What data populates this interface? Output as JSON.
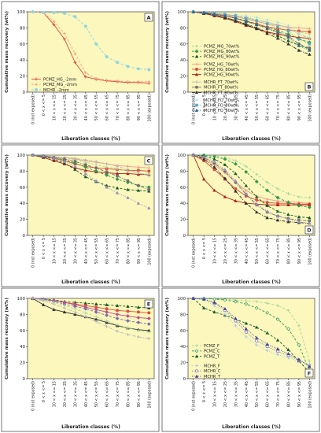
{
  "figure": {
    "categories": [
      "0 (not exposed)",
      "0 < x <= 5",
      "10 < x <= 15",
      "20 < x <= 25",
      "30 < x <= 35",
      "40 < x <= 45",
      "50 < x <= 55",
      "60 < x <= 65",
      "70 < x <= 75",
      "80 < x <= 85",
      "90 < x <= 95",
      "100 (exposed)"
    ],
    "xlabel": "Liberation classes (%)",
    "ylabel": "Cumulative mass recovery (wt%)",
    "yticks": [
      "0",
      "20",
      "40",
      "60",
      "80",
      "100"
    ],
    "plot_bg": "#fbf7bd"
  },
  "chart_data": [
    {
      "panel": "A",
      "type": "line",
      "x": [
        "0 (not exposed)",
        "0 < x <= 5",
        "10 < x <= 15",
        "20 < x <= 25",
        "30 < x <= 35",
        "40 < x <= 45",
        "50 < x <= 55",
        "60 < x <= 65",
        "70 < x <= 75",
        "80 < x <= 85",
        "90 < x <= 95",
        "100 (exposed)"
      ],
      "ylim": [
        0,
        100
      ],
      "legend_position": "bottom-left",
      "series": [
        {
          "name": "PCMZ_HG_-2mm",
          "color": "#e4463c",
          "marker": "plus",
          "dash": "solid",
          "values": [
            100,
            99,
            84,
            66,
            37,
            19,
            16,
            14,
            13,
            12,
            12,
            11
          ]
        },
        {
          "name": "PCMZ_MG_-2mm",
          "color": "#f2a58c",
          "marker": "plus",
          "dash": "dashed",
          "values": [
            100,
            99,
            88,
            73,
            48,
            24,
            17,
            15,
            14,
            13,
            13,
            13
          ]
        },
        {
          "name": "MCHR_-2mm",
          "color": "#8fd3e2",
          "marker": "circle",
          "dash": "dashed",
          "values": [
            100,
            99,
            99,
            98,
            94,
            82,
            60,
            44,
            37,
            32,
            29,
            28
          ]
        }
      ]
    },
    {
      "panel": "B",
      "type": "line",
      "x": [
        "0 (not exposed)",
        "0 < x <= 5",
        "10 < x <= 15",
        "20 < x <= 25",
        "30 < x <= 35",
        "40 < x <= 45",
        "50 < x <= 55",
        "60 < x <= 65",
        "70 < x <= 75",
        "80 < x <= 85",
        "90 < x <= 95",
        "100 (exposed)"
      ],
      "ylim": [
        0,
        100
      ],
      "legend_position": "bottom-left",
      "series": [
        {
          "name": "PCMZ_MG_70wt%",
          "color": "#a7d7a0",
          "marker": "plus",
          "dash": "dashed",
          "values": [
            100,
            99,
            98,
            97,
            95,
            93,
            90,
            87,
            84,
            80,
            75,
            72
          ]
        },
        {
          "name": "PCMZ_MG_80wt%",
          "color": "#2f9a4e",
          "marker": "diamond",
          "dash": "dashed",
          "values": [
            100,
            99,
            97,
            95,
            92,
            89,
            85,
            81,
            77,
            72,
            66,
            62
          ]
        },
        {
          "name": "PCMZ_MG_90wt%",
          "color": "#145a2a",
          "marker": "triangle",
          "dash": "dashed",
          "values": [
            100,
            98,
            96,
            93,
            89,
            85,
            80,
            75,
            70,
            64,
            58,
            54
          ]
        },
        {
          "name": "PCMZ_HG_70wt%",
          "color": "#f29a8c",
          "marker": "plus",
          "dash": "solid",
          "values": [
            100,
            99,
            98,
            96,
            94,
            91,
            88,
            85,
            83,
            81,
            80,
            79
          ]
        },
        {
          "name": "PCMZ_HG_80wt%",
          "color": "#e24b3b",
          "marker": "circle",
          "dash": "solid",
          "values": [
            100,
            99,
            97,
            95,
            92,
            88,
            85,
            81,
            79,
            77,
            76,
            75
          ]
        },
        {
          "name": "PCMZ_HG_90wt%",
          "color": "#b51f1a",
          "marker": "triangle",
          "dash": "solid",
          "values": [
            100,
            98,
            95,
            92,
            88,
            83,
            79,
            75,
            72,
            70,
            68,
            67
          ]
        },
        {
          "name": "MCHR_FT_70wt%",
          "color": "#b8b8b8",
          "marker": "plus",
          "dash": "dashdot",
          "values": [
            100,
            99,
            98,
            97,
            95,
            93,
            90,
            87,
            84,
            80,
            72,
            67
          ]
        },
        {
          "name": "MCHR_FT_80wt%",
          "color": "#6f6f6f",
          "marker": "circle",
          "dash": "dashdot",
          "values": [
            100,
            99,
            97,
            95,
            92,
            88,
            84,
            80,
            75,
            70,
            60,
            55
          ]
        },
        {
          "name": "MCHR_FT_90wt%",
          "color": "#2f2f2f",
          "marker": "triangle",
          "dash": "dashdot",
          "values": [
            100,
            98,
            96,
            93,
            89,
            84,
            79,
            73,
            67,
            60,
            52,
            47
          ]
        },
        {
          "name": "MCHR_FO_70wt%",
          "color": "#a9dbe8",
          "marker": "plus",
          "dash": "dotted",
          "values": [
            100,
            99,
            99,
            98,
            97,
            95,
            93,
            90,
            87,
            83,
            74,
            68
          ]
        },
        {
          "name": "MCHR_FO_80wt%",
          "color": "#5aa8c6",
          "marker": "circle",
          "dash": "dotted",
          "values": [
            100,
            99,
            98,
            97,
            95,
            92,
            89,
            85,
            81,
            76,
            66,
            60
          ]
        },
        {
          "name": "MCHR_FO_90wt%",
          "color": "#2a6b8f",
          "marker": "triangle",
          "dash": "dotted",
          "values": [
            100,
            99,
            97,
            95,
            92,
            88,
            84,
            79,
            74,
            68,
            58,
            52
          ]
        }
      ]
    },
    {
      "panel": "C",
      "type": "line",
      "x": [
        "0 (not exposed)",
        "0 < x <= 5",
        "10 < x <= 15",
        "20 < x <= 25",
        "30 < x <= 35",
        "40 < x <= 45",
        "50 < x <= 55",
        "60 < x <= 65",
        "70 < x <= 75",
        "80 < x <= 85",
        "90 < x <= 95",
        "100 (exposed)"
      ],
      "ylim": [
        0,
        100
      ],
      "series": [
        {
          "color": "#f29a8c",
          "marker": "plus",
          "dash": "solid",
          "values": [
            100,
            99,
            98,
            97,
            95,
            93,
            91,
            89,
            87,
            86,
            85,
            84
          ]
        },
        {
          "color": "#e24b3b",
          "marker": "circle",
          "dash": "solid",
          "values": [
            100,
            98,
            96,
            93,
            89,
            86,
            84,
            83,
            82,
            81,
            81,
            80
          ]
        },
        {
          "color": "#b51f1a",
          "marker": "triangle",
          "dash": "solid",
          "values": [
            100,
            97,
            93,
            89,
            84,
            81,
            79,
            78,
            77,
            77,
            76,
            76
          ]
        },
        {
          "color": "#a7d7a0",
          "marker": "plus",
          "dash": "dashed",
          "values": [
            100,
            99,
            98,
            96,
            94,
            91,
            88,
            85,
            83,
            80,
            78,
            76
          ]
        },
        {
          "color": "#2f9a4e",
          "marker": "diamond",
          "dash": "dashed",
          "values": [
            100,
            99,
            97,
            94,
            90,
            85,
            80,
            75,
            70,
            66,
            62,
            60
          ]
        },
        {
          "color": "#145a2a",
          "marker": "triangle",
          "dash": "dashed",
          "values": [
            100,
            98,
            95,
            90,
            82,
            73,
            67,
            62,
            59,
            57,
            56,
            55
          ]
        },
        {
          "color": "#b8b8b8",
          "marker": "plus",
          "dash": "dashdot",
          "values": [
            100,
            99,
            98,
            97,
            96,
            94,
            92,
            89,
            86,
            82,
            78,
            74
          ]
        },
        {
          "color": "#6f6f6f",
          "marker": "circle",
          "dash": "dashdot",
          "values": [
            100,
            99,
            97,
            95,
            92,
            88,
            84,
            79,
            74,
            68,
            62,
            57
          ]
        },
        {
          "color": "#9a8ec2",
          "marker": "triangle",
          "dash": "dotted",
          "values": [
            100,
            99,
            96,
            92,
            86,
            77,
            68,
            60,
            53,
            47,
            40,
            34
          ]
        }
      ]
    },
    {
      "panel": "D",
      "type": "line",
      "x": [
        "0 (not exposed)",
        "0 < x <= 5",
        "10 < x <= 15",
        "20 < x <= 25",
        "30 < x <= 35",
        "40 < x <= 45",
        "50 < x <= 55",
        "60 < x <= 65",
        "70 < x <= 75",
        "80 < x <= 85",
        "90 < x <= 95",
        "100 (exposed)"
      ],
      "ylim": [
        0,
        100
      ],
      "series": [
        {
          "color": "#f29a8c",
          "marker": "plus",
          "dash": "solid",
          "values": [
            100,
            96,
            88,
            78,
            66,
            56,
            49,
            45,
            43,
            42,
            41,
            40
          ]
        },
        {
          "color": "#e24b3b",
          "marker": "circle",
          "dash": "solid",
          "values": [
            100,
            93,
            82,
            70,
            58,
            49,
            44,
            41,
            40,
            40,
            39,
            39
          ]
        },
        {
          "color": "#b51f1a",
          "marker": "triangle",
          "dash": "solid",
          "values": [
            100,
            70,
            56,
            48,
            43,
            40,
            39,
            38,
            38,
            38,
            38,
            38
          ]
        },
        {
          "color": "#a7d7a0",
          "marker": "plus",
          "dash": "dashed",
          "values": [
            100,
            100,
            99,
            97,
            93,
            86,
            76,
            66,
            58,
            52,
            48,
            47
          ]
        },
        {
          "color": "#2f9a4e",
          "marker": "diamond",
          "dash": "dashed",
          "values": [
            100,
            100,
            98,
            95,
            89,
            79,
            67,
            56,
            47,
            41,
            37,
            35
          ]
        },
        {
          "color": "#145a2a",
          "marker": "triangle",
          "dash": "dashed",
          "values": [
            100,
            99,
            95,
            88,
            77,
            62,
            48,
            37,
            30,
            26,
            23,
            22
          ]
        },
        {
          "color": "#6f6f6f",
          "marker": "circle",
          "dash": "dashdot",
          "values": [
            100,
            97,
            90,
            80,
            66,
            51,
            38,
            29,
            24,
            21,
            19,
            18
          ]
        },
        {
          "color": "#2f2f2f",
          "marker": "triangle",
          "dash": "dashdot",
          "values": [
            100,
            95,
            85,
            71,
            55,
            40,
            29,
            22,
            19,
            17,
            16,
            15
          ]
        },
        {
          "color": "#9a8ec2",
          "marker": "triangle",
          "dash": "dotted",
          "values": [
            100,
            98,
            92,
            82,
            68,
            52,
            39,
            30,
            24,
            20,
            17,
            15
          ]
        }
      ]
    },
    {
      "panel": "E",
      "type": "line",
      "x": [
        "0 (not exposed)",
        "0 < x <= 5",
        "10 < x <= 15",
        "20 < x <= 25",
        "30 < x <= 35",
        "40 < x <= 45",
        "50 < x <= 55",
        "60 < x <= 65",
        "70 < x <= 75",
        "80 < x <= 85",
        "90 < x <= 95",
        "100 (exposed)"
      ],
      "ylim": [
        0,
        100
      ],
      "series": [
        {
          "color": "#145a2a",
          "marker": "triangle",
          "dash": "dashed",
          "values": [
            100,
            99,
            98,
            96,
            95,
            94,
            93,
            92,
            91,
            90,
            89,
            88
          ]
        },
        {
          "color": "#e24b3b",
          "marker": "circle",
          "dash": "solid",
          "values": [
            100,
            99,
            97,
            95,
            93,
            91,
            89,
            87,
            85,
            84,
            83,
            82
          ]
        },
        {
          "color": "#c44a8a",
          "marker": "diamond",
          "dash": "solid",
          "values": [
            100,
            99,
            97,
            95,
            92,
            89,
            86,
            83,
            80,
            78,
            76,
            75
          ]
        },
        {
          "color": "#7a6db0",
          "marker": "diamond",
          "dash": "dashed",
          "values": [
            100,
            99,
            96,
            93,
            90,
            87,
            83,
            79,
            75,
            72,
            70,
            68
          ]
        },
        {
          "color": "#2f2f2f",
          "marker": "triangle",
          "dash": "solid",
          "values": [
            100,
            92,
            86,
            83,
            80,
            77,
            74,
            70,
            66,
            63,
            61,
            60
          ]
        },
        {
          "color": "#a7d7a0",
          "marker": "plus",
          "dash": "dashed",
          "values": [
            100,
            98,
            95,
            91,
            87,
            82,
            77,
            72,
            67,
            63,
            60,
            58
          ]
        },
        {
          "color": "#b8b8b8",
          "marker": "plus",
          "dash": "dashdot",
          "values": [
            100,
            97,
            93,
            88,
            83,
            77,
            71,
            65,
            59,
            55,
            52,
            50
          ]
        }
      ]
    },
    {
      "panel": "F",
      "type": "line",
      "x": [
        "0 (not exposed)",
        "0 < x <= 5",
        "10 < x <= 15",
        "20 < x <= 25",
        "30 < x <= 35",
        "40 < x <= 45",
        "50 < x <= 55",
        "60 < x <= 65",
        "70 < x <= 75",
        "80 < x <= 85",
        "90 < x <= 95",
        "100 (exposed)"
      ],
      "ylim": [
        0,
        100
      ],
      "legend_position": "bottom-left",
      "series": [
        {
          "name": "PCMZ_F",
          "color": "#a7d7a0",
          "marker": "plus",
          "dash": "dashed",
          "values": [
            100,
            100,
            99,
            99,
            98,
            97,
            96,
            94,
            91,
            85,
            66,
            22
          ]
        },
        {
          "name": "PCMZ_C",
          "color": "#2f9a4e",
          "marker": "diamond-open",
          "dash": "dashed",
          "values": [
            100,
            100,
            99,
            98,
            96,
            93,
            88,
            82,
            74,
            62,
            42,
            10
          ]
        },
        {
          "name": "PCMZ_T",
          "color": "#145a2a",
          "marker": "triangle",
          "dash": "dashed",
          "values": [
            100,
            88,
            83,
            79,
            74,
            69,
            64,
            57,
            48,
            36,
            22,
            8
          ]
        },
        {
          "name": "MCHR_F",
          "color": "#a9c9e8",
          "marker": "plus",
          "dash": "dotted",
          "values": [
            100,
            98,
            91,
            80,
            66,
            52,
            42,
            35,
            30,
            26,
            22,
            18
          ]
        },
        {
          "name": "MCHR_C",
          "color": "#7a6db0",
          "marker": "circle-open",
          "dash": "dotted",
          "values": [
            100,
            99,
            94,
            85,
            72,
            58,
            47,
            40,
            34,
            29,
            23,
            16
          ]
        },
        {
          "name": "MCHR_T",
          "color": "#3f3f9a",
          "marker": "triangle",
          "dash": "dotted",
          "values": [
            100,
            99,
            95,
            87,
            75,
            62,
            51,
            43,
            37,
            31,
            24,
            15
          ]
        }
      ]
    }
  ]
}
